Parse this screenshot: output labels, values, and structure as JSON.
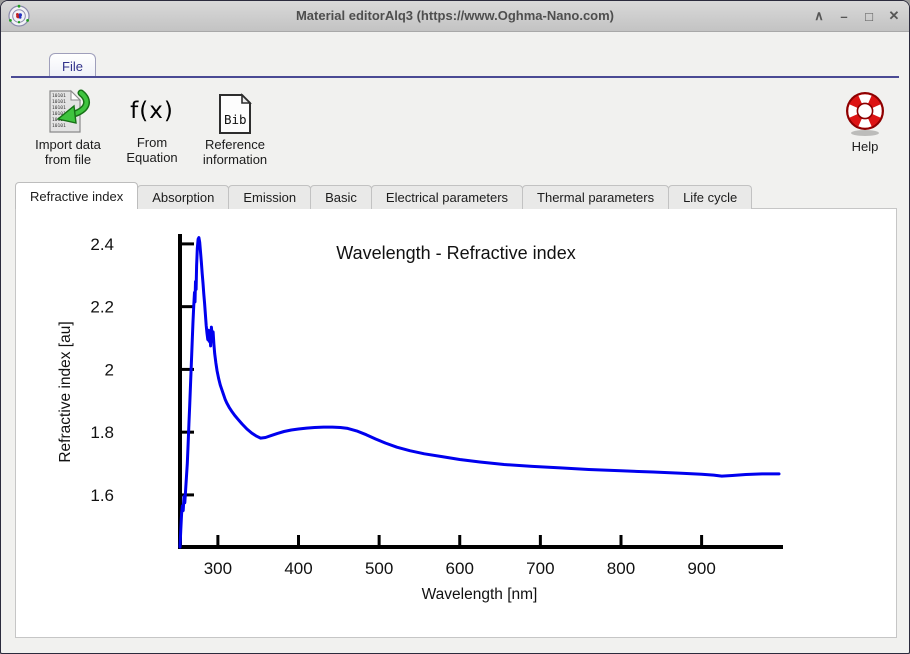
{
  "window": {
    "title": "Material editorAlq3 (https://www.Oghma-Nano.com)",
    "controls": [
      {
        "name": "shade",
        "glyph": "∧"
      },
      {
        "name": "minimize",
        "glyph": "–"
      },
      {
        "name": "maximize",
        "glyph": "□"
      },
      {
        "name": "close",
        "glyph": "✕"
      }
    ]
  },
  "ribbon": {
    "file_tab_label": "File"
  },
  "toolbar": {
    "import": {
      "line1": "Import data",
      "line2": "from file",
      "binary": "10101"
    },
    "equation": {
      "icon_text": "f(x)",
      "line1": "From",
      "line2": "Equation"
    },
    "reference": {
      "icon_text": "Bib",
      "line1": "Reference",
      "line2": "information"
    },
    "help": {
      "label": "Help"
    }
  },
  "tabs": [
    {
      "label": "Refractive index",
      "active": true
    },
    {
      "label": "Absorption",
      "active": false
    },
    {
      "label": "Emission",
      "active": false
    },
    {
      "label": "Basic",
      "active": false
    },
    {
      "label": "Electrical parameters",
      "active": false
    },
    {
      "label": "Thermal parameters",
      "active": false
    },
    {
      "label": "Life cycle",
      "active": false
    }
  ],
  "colors": {
    "accent_line": "#4a4a94",
    "file_text": "#31318a",
    "plot_line": "#0000ee",
    "axis": "#000000"
  },
  "chart_data": {
    "type": "line",
    "title": "Wavelength - Refractive index",
    "xlabel": "Wavelength [nm]",
    "ylabel": "Refractive index [au]",
    "xlim": [
      253,
      996
    ],
    "ylim": [
      1.434,
      2.422
    ],
    "xticks": [
      300,
      400,
      500,
      600,
      700,
      800,
      900
    ],
    "ytick_labels": [
      "1.6",
      "1.8",
      "2",
      "2.2",
      "2.4"
    ],
    "grid": false,
    "legend": "none",
    "line_color": "#0000ee",
    "series": [
      {
        "name": "Refractive index",
        "points": [
          [
            253,
            1.434
          ],
          [
            254,
            1.49
          ],
          [
            255,
            1.54
          ],
          [
            256,
            1.565
          ],
          [
            257,
            1.55
          ],
          [
            258,
            1.595
          ],
          [
            259,
            1.575
          ],
          [
            260,
            1.615
          ],
          [
            261,
            1.655
          ],
          [
            262,
            1.7
          ],
          [
            263,
            1.76
          ],
          [
            264,
            1.825
          ],
          [
            265,
            1.885
          ],
          [
            266,
            1.95
          ],
          [
            267,
            2.015
          ],
          [
            268,
            2.08
          ],
          [
            269,
            2.145
          ],
          [
            270,
            2.2
          ],
          [
            271,
            2.245
          ],
          [
            271.6,
            2.215
          ],
          [
            272.2,
            2.28
          ],
          [
            273,
            2.255
          ],
          [
            273.6,
            2.33
          ],
          [
            274.4,
            2.385
          ],
          [
            275.4,
            2.415
          ],
          [
            276.4,
            2.42
          ],
          [
            277.4,
            2.405
          ],
          [
            278.4,
            2.375
          ],
          [
            279.5,
            2.34
          ],
          [
            280.5,
            2.305
          ],
          [
            281.5,
            2.275
          ],
          [
            282.5,
            2.24
          ],
          [
            283.5,
            2.21
          ],
          [
            284.5,
            2.175
          ],
          [
            285.5,
            2.14
          ],
          [
            286.5,
            2.115
          ],
          [
            287.5,
            2.095
          ],
          [
            288.3,
            2.125
          ],
          [
            289.1,
            2.09
          ],
          [
            290,
            2.115
          ],
          [
            291,
            2.075
          ],
          [
            292,
            2.135
          ],
          [
            293,
            2.105
          ],
          [
            294,
            2.12
          ],
          [
            295,
            2.08
          ],
          [
            296,
            2.05
          ],
          [
            297.5,
            2.02
          ],
          [
            299,
            1.995
          ],
          [
            301,
            1.97
          ],
          [
            303,
            1.95
          ],
          [
            305,
            1.935
          ],
          [
            307,
            1.92
          ],
          [
            309,
            1.905
          ],
          [
            311,
            1.893
          ],
          [
            314,
            1.879
          ],
          [
            317,
            1.867
          ],
          [
            321,
            1.853
          ],
          [
            325,
            1.841
          ],
          [
            330,
            1.826
          ],
          [
            336,
            1.81
          ],
          [
            342,
            1.797
          ],
          [
            348,
            1.787
          ],
          [
            353,
            1.781
          ],
          [
            359,
            1.783
          ],
          [
            366,
            1.789
          ],
          [
            374,
            1.796
          ],
          [
            382,
            1.802
          ],
          [
            391,
            1.807
          ],
          [
            400,
            1.81
          ],
          [
            410,
            1.813
          ],
          [
            420,
            1.815
          ],
          [
            431,
            1.816
          ],
          [
            442,
            1.816
          ],
          [
            452,
            1.815
          ],
          [
            461,
            1.812
          ],
          [
            472,
            1.804
          ],
          [
            484,
            1.792
          ],
          [
            496,
            1.778
          ],
          [
            508,
            1.765
          ],
          [
            522,
            1.752
          ],
          [
            538,
            1.741
          ],
          [
            556,
            1.731
          ],
          [
            578,
            1.722
          ],
          [
            600,
            1.713
          ],
          [
            625,
            1.705
          ],
          [
            655,
            1.697
          ],
          [
            690,
            1.691
          ],
          [
            725,
            1.686
          ],
          [
            760,
            1.681
          ],
          [
            800,
            1.677
          ],
          [
            840,
            1.673
          ],
          [
            875,
            1.669
          ],
          [
            900,
            1.666
          ],
          [
            915,
            1.663
          ],
          [
            925,
            1.66
          ],
          [
            938,
            1.662
          ],
          [
            955,
            1.665
          ],
          [
            975,
            1.667
          ],
          [
            996,
            1.667
          ]
        ]
      }
    ]
  }
}
